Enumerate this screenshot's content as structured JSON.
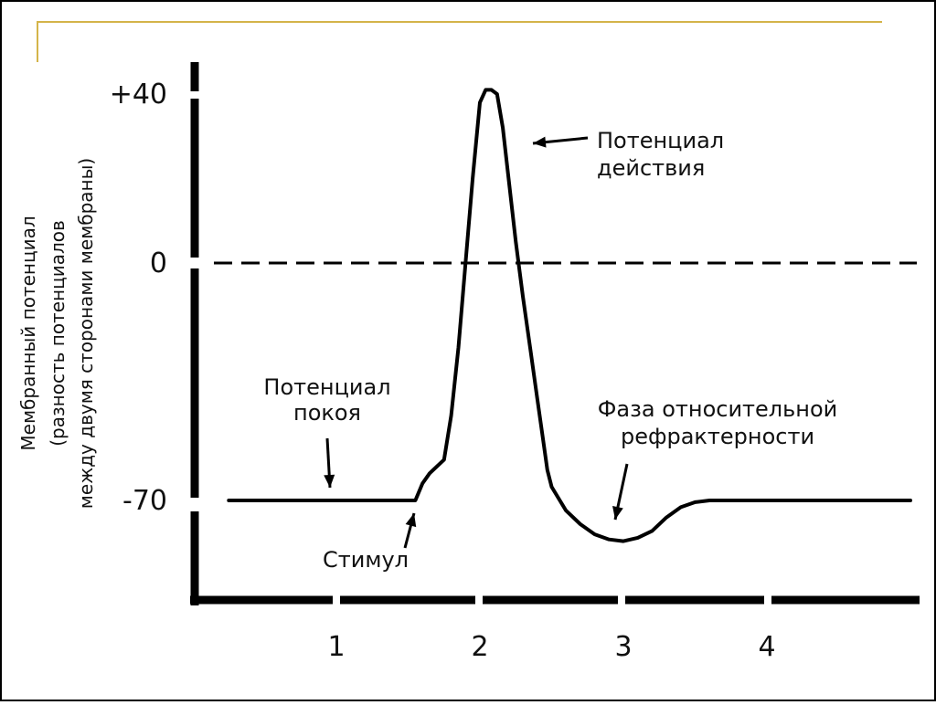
{
  "frame": {
    "border_color": "#000000",
    "accent_line_color": "#d4b44a"
  },
  "chart_data": {
    "type": "line",
    "ylabel_lines": [
      "Мембранный потенциал",
      "(разность потенциалов",
      "между двумя сторонами мембраны)"
    ],
    "y_ticks": [
      {
        "value": 40,
        "label": "+40"
      },
      {
        "value": 0,
        "label": "0"
      },
      {
        "value": -70,
        "label": "-70"
      }
    ],
    "x_ticks": [
      {
        "value": 1,
        "label": "1"
      },
      {
        "value": 2,
        "label": "2"
      },
      {
        "value": 3,
        "label": "3"
      },
      {
        "value": 4,
        "label": "4"
      }
    ],
    "xlim": [
      0.25,
      5.0
    ],
    "ylim": [
      -95,
      45
    ],
    "zero_line": "dashed",
    "grid": false,
    "series": [
      {
        "x": [
          0.25,
          0.6,
          1.0,
          1.3,
          1.55,
          1.6,
          1.65,
          1.75,
          1.8,
          1.85,
          1.9,
          1.95,
          2.0,
          2.04,
          2.08,
          2.12,
          2.16,
          2.2,
          2.25,
          2.3,
          2.35,
          2.4,
          2.44,
          2.47,
          2.5,
          2.6,
          2.7,
          2.8,
          2.9,
          3.0,
          3.1,
          3.2,
          3.3,
          3.4,
          3.5,
          3.6,
          3.7,
          3.8,
          4.0,
          4.5,
          5.0
        ],
        "values": [
          -70,
          -70,
          -70,
          -70,
          -70,
          -65,
          -62,
          -58,
          -45,
          -25,
          0,
          20,
          38,
          41,
          41,
          40,
          32,
          20,
          5,
          -10,
          -25,
          -40,
          -52,
          -61,
          -66,
          -73,
          -77,
          -80,
          -81.5,
          -82,
          -81,
          -79,
          -75,
          -72,
          -70.5,
          -70,
          -70,
          -70,
          -70,
          -70,
          -70
        ]
      }
    ],
    "annotations": [
      {
        "lines": [
          "Потенциал",
          "действия"
        ],
        "target_x": 2.16,
        "target_y": 30
      },
      {
        "lines": [
          "Потенциал",
          "покоя"
        ],
        "target_x": 1.0,
        "target_y": -69
      },
      {
        "lines": [
          "Стимул"
        ],
        "target_x": 1.55,
        "target_y": -71
      },
      {
        "lines": [
          "Фаза относительной",
          "рефрактерности"
        ],
        "target_x": 2.95,
        "target_y": -80
      }
    ]
  }
}
